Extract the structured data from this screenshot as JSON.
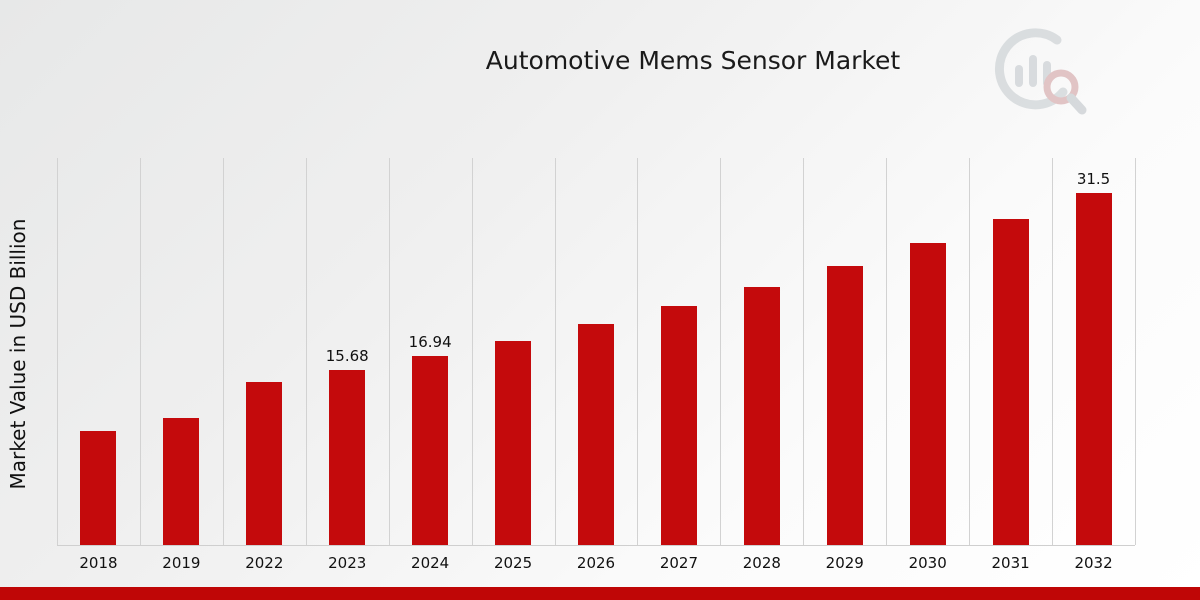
{
  "header": {
    "title": "Automotive Mems Sensor Market"
  },
  "axes": {
    "y_label": "Market Value in USD Billion"
  },
  "chart_data": {
    "type": "bar",
    "title": "Automotive Mems Sensor Market",
    "xlabel": "",
    "ylabel": "Market Value in USD Billion",
    "categories": [
      "2018",
      "2019",
      "2022",
      "2023",
      "2024",
      "2025",
      "2026",
      "2027",
      "2028",
      "2029",
      "2030",
      "2031",
      "2032"
    ],
    "values": [
      10.2,
      11.4,
      14.6,
      15.68,
      16.94,
      18.3,
      19.8,
      21.4,
      23.1,
      25.0,
      27.0,
      29.2,
      31.5
    ],
    "bar_labels": [
      "",
      "",
      "",
      "15.68",
      "16.94",
      "",
      "",
      "",
      "",
      "",
      "",
      "",
      "31.5"
    ],
    "ylim": [
      0,
      34.65
    ],
    "grid": "vertical-only",
    "legend": "none",
    "bar_color": "#c40a0c"
  },
  "branding": {
    "logo_name": "market-research-future-watermark",
    "footer_bar_color": "#bf0606",
    "logo_gray": "#c2c8cc",
    "logo_red": "#cf9a9c"
  }
}
